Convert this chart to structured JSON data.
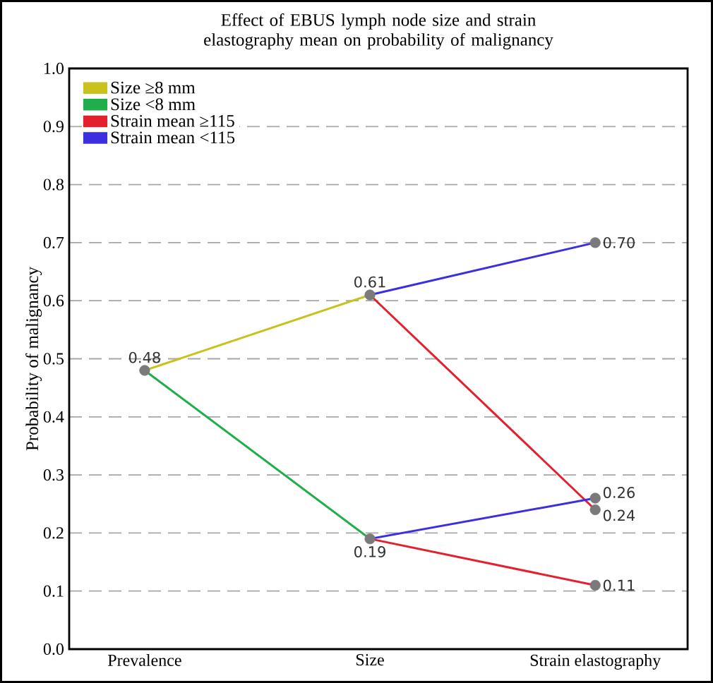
{
  "chart_data": {
    "type": "line",
    "title": "Effect of EBUS lymph node size and strain elastography mean on probability of malignancy",
    "ylabel": "Probability of malignancy",
    "categories": [
      "Prevalence",
      "Size",
      "Strain elastography"
    ],
    "series": [
      {
        "name": "Size ≥8 mm",
        "color": "#c9c21c",
        "values": [
          0.48,
          0.61,
          null
        ]
      },
      {
        "name": "Size <8 mm",
        "color": "#1fae4b",
        "values": [
          0.48,
          0.19,
          null
        ]
      },
      {
        "name": "Strain mean ≥115",
        "color": "#e5202e",
        "values": [
          null,
          0.61,
          0.24
        ]
      },
      {
        "color": "#e5202e",
        "values": [
          null,
          0.19,
          0.11
        ]
      },
      {
        "name": "Strain mean <115",
        "color": "#3b2fe0",
        "values": [
          null,
          0.61,
          0.7
        ]
      },
      {
        "color": "#3b2fe0",
        "values": [
          null,
          0.19,
          0.26
        ]
      },
      {
        "type": "scatter",
        "marker": "circle",
        "color": "#7a7a7a",
        "x": [
          "Prevalence",
          "Size",
          "Size",
          "Strain elastography",
          "Strain elastography",
          "Strain elastography",
          "Strain elastography"
        ],
        "values": [
          0.48,
          0.61,
          0.19,
          0.7,
          0.26,
          0.24,
          0.11
        ],
        "value_labels": [
          "0.48",
          "0.61",
          "0.19",
          "0.70",
          "0.26",
          "0.24",
          "0.11"
        ]
      }
    ],
    "ylim": [
      0,
      1
    ],
    "yticks": [
      {
        "value": 0,
        "label": "0.0"
      },
      0.1,
      0.2,
      0.3,
      0.4,
      0.5,
      0.6,
      0.7,
      0.8,
      0.9,
      {
        "value": 1,
        "label": "1.0"
      }
    ],
    "grid": "y",
    "legend": "top left"
  }
}
